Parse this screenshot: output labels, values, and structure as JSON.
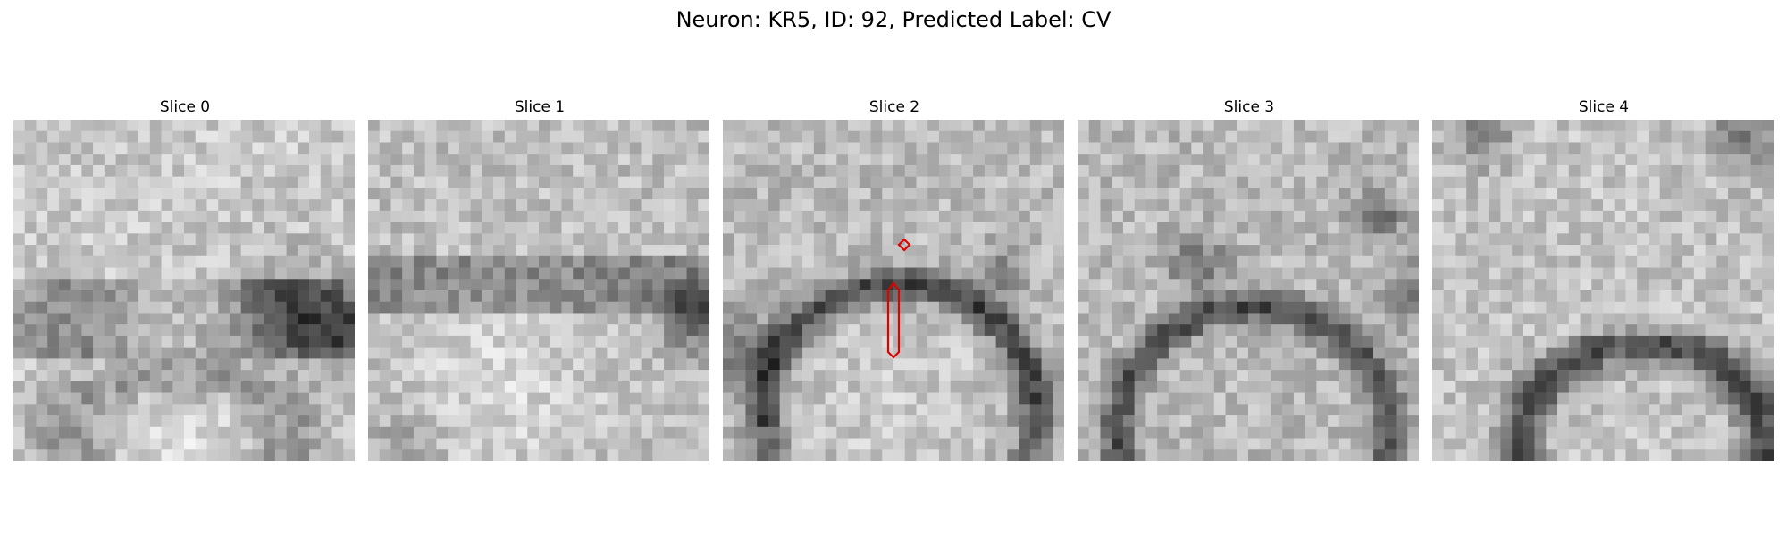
{
  "figure": {
    "title": "Neuron: KR5, ID: 92, Predicted Label: CV"
  },
  "panels": [
    {
      "title": "Slice 0"
    },
    {
      "title": "Slice 1"
    },
    {
      "title": "Slice 2"
    },
    {
      "title": "Slice 3"
    },
    {
      "title": "Slice 4"
    }
  ],
  "annotation": {
    "panel": "Slice 2",
    "color": "#e00000",
    "shapes": [
      "small-diamond-marker",
      "elongated-hexagon-contour"
    ]
  }
}
